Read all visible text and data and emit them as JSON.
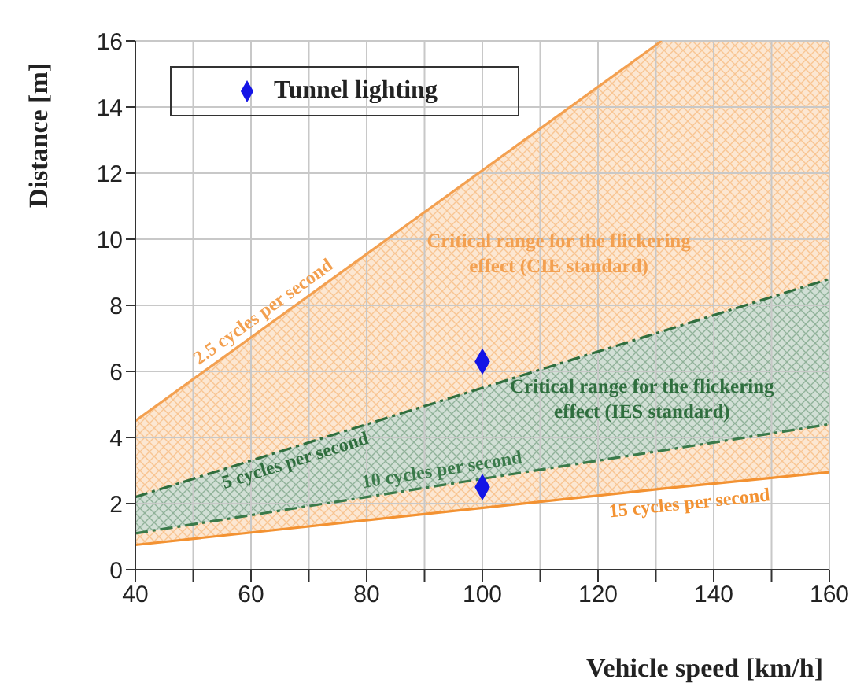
{
  "chart_data": {
    "type": "line",
    "xlabel": "Vehicle speed [km/h]",
    "ylabel": "Distance [m]",
    "xlim": [
      40,
      160
    ],
    "ylim": [
      0,
      16
    ],
    "xticks": [
      40,
      {
        "value": 50,
        "label": null
      },
      60,
      {
        "value": 70,
        "label": null
      },
      80,
      {
        "value": 90,
        "label": null
      },
      100,
      {
        "value": 110,
        "label": null
      },
      120,
      {
        "value": 130,
        "label": null
      },
      140,
      {
        "value": 150,
        "label": null
      },
      160
    ],
    "yticks": [
      0,
      2,
      4,
      6,
      8,
      10,
      12,
      14,
      16
    ],
    "grid": true,
    "legend": "top left",
    "series": [
      {
        "name": "2.5 cycles per second",
        "color": "#f3a050",
        "line_style": "solid",
        "x": [
          40,
          131
        ],
        "values": [
          4.5,
          16
        ]
      },
      {
        "name": "5 cycles per second",
        "color": "#2f6e3e",
        "line_style": "dashed",
        "x": [
          40,
          160
        ],
        "values": [
          2.2,
          8.8
        ],
        "lower": [
          1.1,
          4.4
        ],
        "upper": [
          2.2,
          8.8
        ]
      },
      {
        "name": "10 cycles per second",
        "color": "#3a7a4a",
        "line_style": "dashed",
        "x": [
          40,
          160
        ],
        "values": [
          1.1,
          4.4
        ]
      },
      {
        "name": "15 cycles per second",
        "color": "#f39232",
        "line_style": "solid",
        "x": [
          40,
          131,
          160
        ],
        "values": [
          0.75,
          2.45,
          2.95
        ],
        "lower": [
          0.75,
          2.45,
          2.95
        ],
        "upper": [
          4.5,
          16,
          16
        ]
      },
      {
        "type": "scatter",
        "name": "Tunnel lighting",
        "color": "#1414e6",
        "marker": "diamond",
        "x": [
          100,
          100
        ],
        "values": [
          6.3,
          2.5
        ]
      }
    ],
    "annotations": [
      "Critical range for the flickering effect (CIE standard)",
      "Critical range for the flickering effect (IES standard)"
    ]
  }
}
